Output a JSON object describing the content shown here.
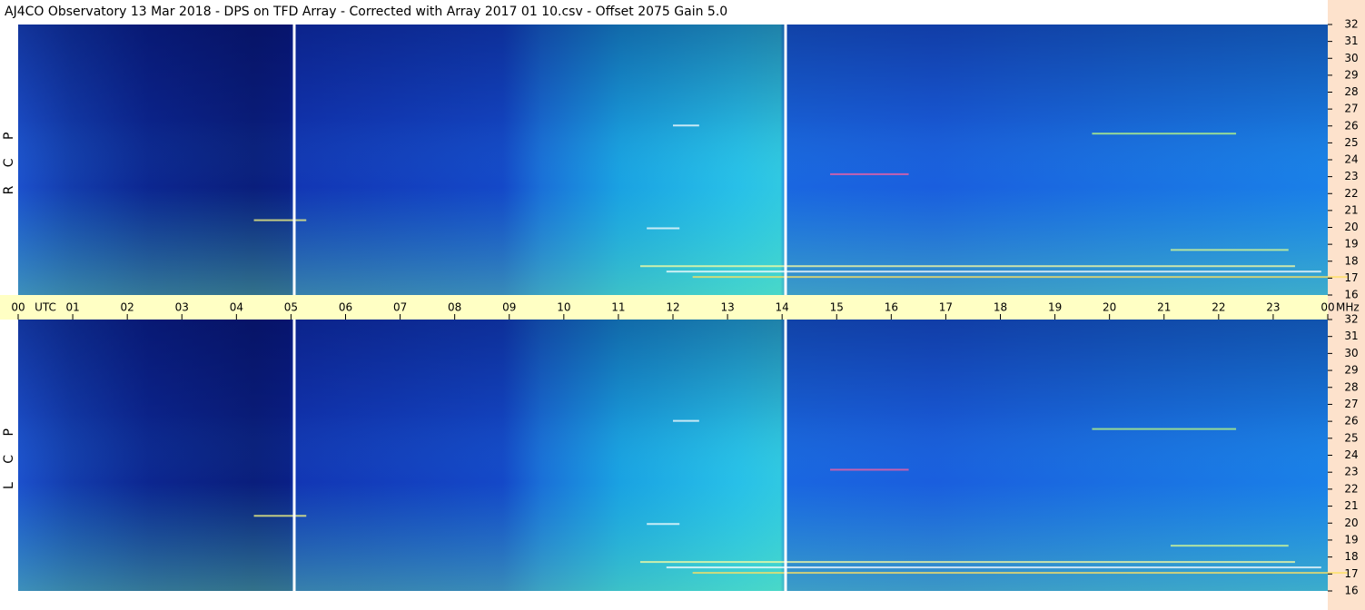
{
  "chart_data": {
    "type": "heatmap",
    "title": "AJ4CO Observatory  13 Mar 2018  -  DPS on TFD Array  -  Corrected with Array 2017 01 10.csv  -  Offset 2075  Gain 5.0",
    "xlabel": "UTC",
    "ylabel": "MHz",
    "xlim": [
      0,
      24
    ],
    "xticks": [
      {
        "value": 0,
        "label": "00"
      },
      {
        "value": 1,
        "label": "01"
      },
      {
        "value": 2,
        "label": "02"
      },
      {
        "value": 3,
        "label": "03"
      },
      {
        "value": 4,
        "label": "04"
      },
      {
        "value": 5,
        "label": "05"
      },
      {
        "value": 6,
        "label": "06"
      },
      {
        "value": 7,
        "label": "07"
      },
      {
        "value": 8,
        "label": "08"
      },
      {
        "value": 9,
        "label": "09"
      },
      10,
      11,
      12,
      13,
      14,
      15,
      16,
      17,
      18,
      19,
      20,
      21,
      22,
      23,
      {
        "value": 24,
        "label": "00"
      }
    ],
    "ylim": [
      16,
      32
    ],
    "yticks": [
      16,
      17,
      18,
      19,
      20,
      21,
      22,
      23,
      24,
      25,
      26,
      27,
      28,
      29,
      30,
      31,
      32
    ],
    "panels": [
      {
        "label": "R C P"
      },
      {
        "label": "L C P"
      }
    ]
  }
}
